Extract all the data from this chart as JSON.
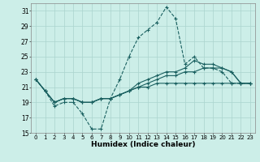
{
  "xlabel": "Humidex (Indice chaleur)",
  "bg_color": "#cceee8",
  "grid_color": "#aad4ce",
  "line_color": "#1a6060",
  "xlim": [
    -0.5,
    23.5
  ],
  "ylim": [
    15,
    32
  ],
  "yticks": [
    15,
    17,
    19,
    21,
    23,
    25,
    27,
    29,
    31
  ],
  "xticks": [
    0,
    1,
    2,
    3,
    4,
    5,
    6,
    7,
    8,
    9,
    10,
    11,
    12,
    13,
    14,
    15,
    16,
    17,
    18,
    19,
    20,
    21,
    22,
    23
  ],
  "series": [
    {
      "y": [
        22.0,
        20.5,
        18.5,
        19.0,
        19.0,
        17.5,
        15.5,
        15.5,
        19.5,
        22.0,
        25.0,
        27.5,
        28.5,
        29.5,
        31.5,
        30.0,
        24.0,
        25.0,
        23.5,
        23.5,
        23.0,
        21.5,
        21.5,
        21.5
      ],
      "ls": "--"
    },
    {
      "y": [
        22.0,
        20.5,
        19.0,
        19.5,
        19.5,
        19.0,
        19.0,
        19.5,
        19.5,
        20.0,
        20.5,
        21.0,
        21.0,
        21.5,
        21.5,
        21.5,
        21.5,
        21.5,
        21.5,
        21.5,
        21.5,
        21.5,
        21.5,
        21.5
      ],
      "ls": "-"
    },
    {
      "y": [
        22.0,
        20.5,
        19.0,
        19.5,
        19.5,
        19.0,
        19.0,
        19.5,
        19.5,
        20.0,
        20.5,
        21.0,
        21.5,
        22.0,
        22.5,
        22.5,
        23.0,
        23.0,
        23.5,
        23.5,
        23.5,
        23.0,
        21.5,
        21.5
      ],
      "ls": "-"
    },
    {
      "y": [
        22.0,
        20.5,
        19.0,
        19.5,
        19.5,
        19.0,
        19.0,
        19.5,
        19.5,
        20.0,
        20.5,
        21.5,
        22.0,
        22.5,
        23.0,
        23.0,
        23.5,
        24.5,
        24.0,
        24.0,
        23.5,
        23.0,
        21.5,
        21.5
      ],
      "ls": "-"
    }
  ]
}
